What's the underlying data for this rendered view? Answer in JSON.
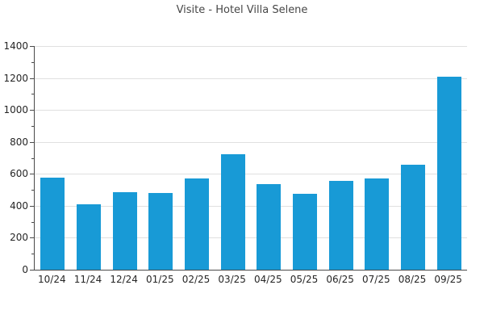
{
  "chart_data": {
    "type": "bar",
    "title": "Visite - Hotel Villa Selene",
    "categories": [
      "10/24",
      "11/24",
      "12/24",
      "01/25",
      "02/25",
      "03/25",
      "04/25",
      "05/25",
      "06/25",
      "07/25",
      "08/25",
      "09/25"
    ],
    "values": [
      575,
      410,
      485,
      480,
      570,
      725,
      535,
      475,
      555,
      570,
      655,
      1210
    ],
    "xlabel": "",
    "ylabel": "",
    "ylim": [
      0,
      1400
    ],
    "ytick_step": 200,
    "yminor_tick_step": 100,
    "ytick_labels": [
      "0",
      "200",
      "400",
      "600",
      "800",
      "1000",
      "1200",
      "1400"
    ],
    "grid": true,
    "legend_position": "none",
    "colors": {
      "bar": "#189ad6",
      "grid": "#e0e0e0",
      "axis": "#4a4a4a",
      "tick_label": "#262626",
      "title": "#474747",
      "background": "#ffffff"
    }
  }
}
